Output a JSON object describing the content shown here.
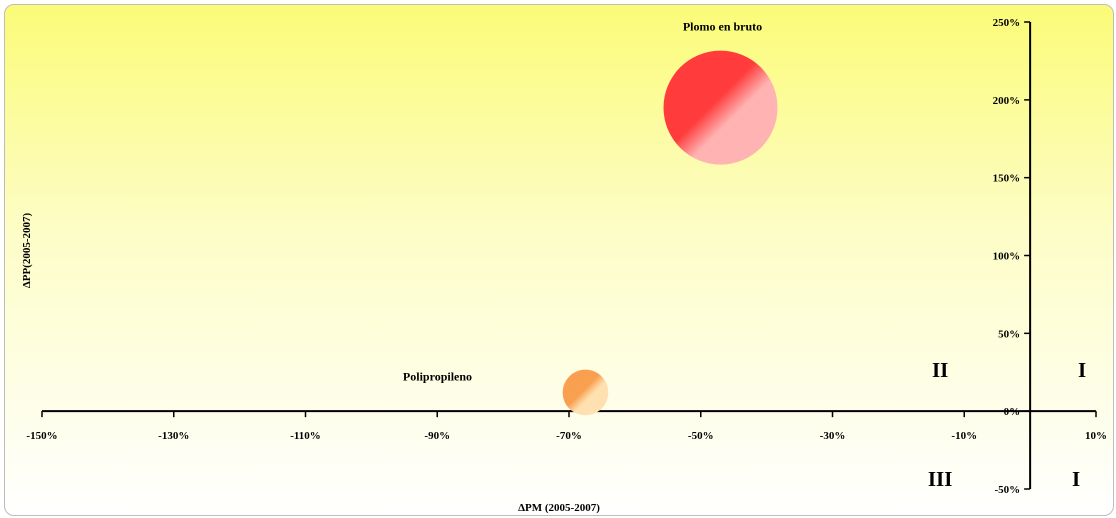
{
  "chart_data": {
    "type": "bubble",
    "xlabel": "ΔPM (2005-2007)",
    "ylabel": "ΔPP(2005-2007)",
    "xlim": [
      -1.5,
      0.1
    ],
    "ylim": [
      -0.5,
      2.5
    ],
    "x_ticks": [
      {
        "value": -1.5,
        "label": "-150%"
      },
      {
        "value": -1.3,
        "label": "-130%"
      },
      {
        "value": -1.1,
        "label": "-110%"
      },
      {
        "value": -0.9,
        "label": "-90%"
      },
      {
        "value": -0.7,
        "label": "-70%"
      },
      {
        "value": -0.5,
        "label": "-50%"
      },
      {
        "value": -0.3,
        "label": "-30%"
      },
      {
        "value": -0.1,
        "label": "-10%"
      },
      {
        "value": 0.1,
        "label": "10%"
      }
    ],
    "y_ticks": [
      {
        "value": -0.5,
        "label": "-50%"
      },
      {
        "value": 0.0,
        "label": "0%"
      },
      {
        "value": 0.5,
        "label": "50%"
      },
      {
        "value": 1.0,
        "label": "100%"
      },
      {
        "value": 1.5,
        "label": "150%"
      },
      {
        "value": 2.0,
        "label": "200%"
      },
      {
        "value": 2.5,
        "label": "250%"
      }
    ],
    "points": [
      {
        "name": "Plomo en bruto",
        "x": -0.47,
        "y": 1.95,
        "size": 1.0,
        "color_light": "#ffb3b3",
        "color_dark": "#ff3b3b"
      },
      {
        "name": "Polipropileno",
        "x": -0.675,
        "y": 0.12,
        "size": 0.16,
        "color_light": "#ffe0b0",
        "color_dark": "#f8a050"
      }
    ],
    "quadrants": [
      {
        "label": "II",
        "pos": "upper-left"
      },
      {
        "label": "I",
        "pos": "upper-right"
      },
      {
        "label": "III",
        "pos": "lower-left"
      },
      {
        "label": "I",
        "pos": "lower-right"
      }
    ],
    "background": {
      "top": "#fbfb78",
      "bottom": "#ffffff"
    }
  }
}
